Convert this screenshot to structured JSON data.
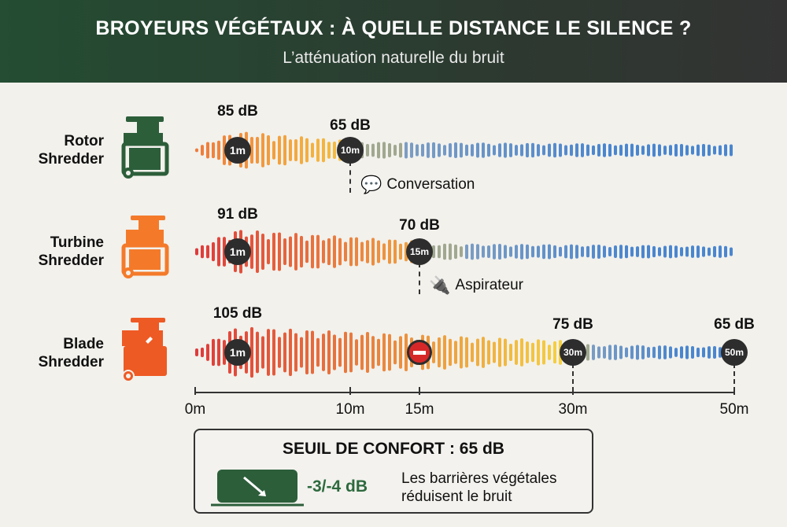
{
  "header": {
    "title": "BROYEURS VÉGÉTAUX : À QUELLE DISTANCE LE SILENCE ?",
    "subtitle": "L’atténuation naturelle du bruit"
  },
  "rows": [
    {
      "label_1": "Rotor",
      "label_2": "Shredder",
      "icon": "rotor-shredder-icon",
      "color": "#2c5e3a",
      "levels": [
        {
          "db": "85 dB",
          "marker": "1m"
        },
        {
          "db": "65 dB",
          "marker": "10m"
        }
      ],
      "note": {
        "icon": "speech-bubbles-icon",
        "text": "Conversation"
      }
    },
    {
      "label_1": "Turbine",
      "label_2": "Shredder",
      "icon": "turbine-shredder-icon",
      "color": "#f47a2a",
      "levels": [
        {
          "db": "91 dB",
          "marker": "1m"
        },
        {
          "db": "70 dB",
          "marker": "15m"
        }
      ],
      "note": {
        "icon": "plug-icon",
        "text": "Aspirateur"
      }
    },
    {
      "label_1": "Blade",
      "label_2": "Shredder",
      "icon": "blade-shredder-icon",
      "color": "#ee5a24",
      "levels": [
        {
          "db": "105 dB",
          "marker": "1m"
        },
        {
          "db": "75 dB",
          "marker": "30m"
        },
        {
          "db": "65 dB",
          "marker": "50m"
        }
      ],
      "stop_icon": "no-entry-icon"
    }
  ],
  "axis": {
    "ticks": [
      "0m",
      "10m",
      "15m",
      "30m",
      "50m"
    ]
  },
  "comfort": {
    "title": "SEUIL DE CONFORT : 65 dB",
    "reduction": "-3/-4 dB",
    "text_1": "Les barrières végétales",
    "text_2": "réduisent le bruit",
    "icon": "hedge-icon"
  }
}
